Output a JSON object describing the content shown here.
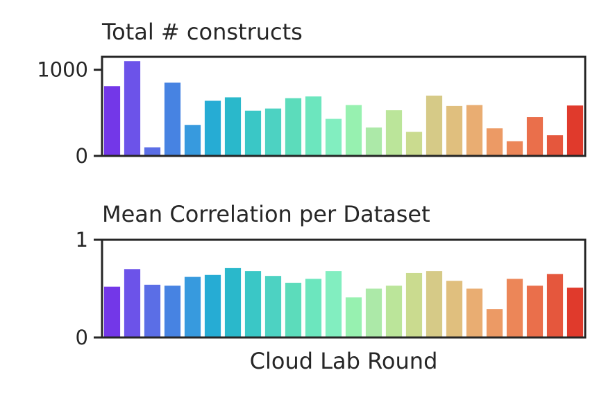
{
  "chart_data": [
    {
      "type": "bar",
      "title": "Total # constructs",
      "xlabel": "",
      "ylabel": "",
      "ylim": [
        0,
        1150
      ],
      "yticks": [
        0,
        1000
      ],
      "grid": false,
      "values": [
        810,
        1100,
        100,
        850,
        360,
        640,
        680,
        525,
        550,
        670,
        690,
        430,
        590,
        330,
        530,
        280,
        700,
        580,
        590,
        320,
        170,
        450,
        240,
        585
      ]
    },
    {
      "type": "bar",
      "title": "Mean Correlation per Dataset",
      "xlabel": "Cloud Lab Round",
      "ylabel": "",
      "ylim": [
        0,
        1
      ],
      "yticks": [
        0,
        1
      ],
      "grid": false,
      "values": [
        0.52,
        0.7,
        0.54,
        0.53,
        0.62,
        0.64,
        0.71,
        0.68,
        0.63,
        0.56,
        0.6,
        0.68,
        0.41,
        0.5,
        0.53,
        0.66,
        0.68,
        0.58,
        0.5,
        0.29,
        0.6,
        0.53,
        0.65,
        0.51
      ]
    }
  ],
  "colors": [
    "#7337e8",
    "#6c53e9",
    "#5b6ee6",
    "#4783e2",
    "#379ade",
    "#26acd4",
    "#2ab8cb",
    "#3ac7c6",
    "#4dd2c2",
    "#5cdcbb",
    "#6ce6be",
    "#82eec0",
    "#97f1b0",
    "#ace9a8",
    "#bbe59a",
    "#cadb8f",
    "#d6ca87",
    "#e0bf7e",
    "#e9ad72",
    "#ec9a65",
    "#ec8658",
    "#ea6f4b",
    "#e5573d",
    "#e03a2c"
  ]
}
